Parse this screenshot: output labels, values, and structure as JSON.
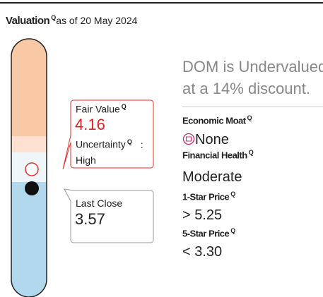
{
  "header": {
    "title": "Valuation",
    "q_icon": "Q",
    "as_of": "as of 20 May 2024"
  },
  "fair_value": {
    "label": "Fair Value",
    "value": "4.16",
    "uncertainty_label": "Uncertainty",
    "separator": ":",
    "uncertainty": "High"
  },
  "last_close": {
    "label": "Last Close",
    "value": "3.57"
  },
  "summary": [
    "DOM is Undervalued",
    "at a 14% discount."
  ],
  "metrics": [
    {
      "label": "Economic Moat",
      "value": "None"
    },
    {
      "label": "Financial Health",
      "value": "Moderate"
    },
    {
      "label": "1-Star Price",
      "symbol": ">",
      "value": "5.25"
    },
    {
      "label": "5-Star Price",
      "symbol": "<",
      "value": "3.30"
    }
  ]
}
